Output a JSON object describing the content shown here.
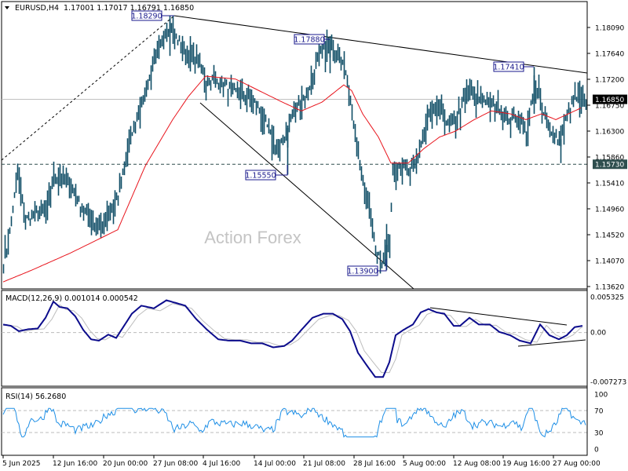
{
  "header": {
    "symbol_timeframe": "EURUSD,H4",
    "ohlc": "1.17001 1.17017 1.16791 1.16850",
    "menu_icon": "triangle-down-icon"
  },
  "watermark": "Action Forex",
  "colors": {
    "candle": "#0f4d66",
    "ma": "#e8141c",
    "macd_main": "#0c0c8c",
    "macd_signal": "#bdbdbd",
    "rsi": "#1e8fe6",
    "tag_border": "#1a1a8c",
    "current_price_bg": "#000000",
    "level_bg": "#2f4f4f"
  },
  "price_axis": {
    "ticks": [
      "1.18090",
      "1.17640",
      "1.17200",
      "1.16750",
      "1.16300",
      "1.15860",
      "1.15410",
      "1.14960",
      "1.14520",
      "1.14070",
      "1.13620"
    ],
    "current_price": "1.16850",
    "level_price": "1.15730"
  },
  "annotations": {
    "high_1": "1.18290",
    "high_2": "1.17880",
    "high_3": "1.17410",
    "low_1": "1.15550",
    "low_2": "1.13900"
  },
  "macd": {
    "label": "MACD(12,26,9) 0.001014 0.000542",
    "ticks": [
      "0.005325",
      "0.00",
      "-0.007273"
    ]
  },
  "rsi": {
    "label": "RSI(14) 56.2680",
    "ticks": [
      "100",
      "70",
      "30",
      "0"
    ]
  },
  "time_axis": {
    "labels": [
      "5 Jun 2025",
      "12 Jun 16:00",
      "20 Jun 00:00",
      "27 Jun 08:00",
      "4 Jul 16:00",
      "14 Jul 00:00",
      "21 Jul 08:00",
      "28 Jul 16:00",
      "5 Aug 00:00",
      "12 Aug 08:00",
      "19 Aug 16:00",
      "27 Aug 00:00"
    ]
  },
  "chart_data": {
    "type": "bar",
    "title": "EURUSD,H4 1.17001 1.17017 1.16791 1.16850",
    "xlabel": "",
    "ylabel": "",
    "ylim": [
      1.1362,
      1.1829
    ],
    "grid": false,
    "x": [
      "5 Jun 2025",
      "12 Jun 16:00",
      "20 Jun 00:00",
      "27 Jun 08:00",
      "4 Jul 16:00",
      "14 Jul 00:00",
      "21 Jul 08:00",
      "28 Jul 16:00",
      "5 Aug 00:00",
      "12 Aug 08:00",
      "19 Aug 16:00",
      "27 Aug 00:00"
    ],
    "series": [
      {
        "name": "EURUSD H4 close (approx. at time labels)",
        "values": [
          1.141,
          1.156,
          1.147,
          1.179,
          1.17,
          1.161,
          1.175,
          1.142,
          1.156,
          1.168,
          1.165,
          1.1685
        ]
      },
      {
        "name": "Moving average (red)",
        "values": [
          1.137,
          1.144,
          1.1495,
          1.166,
          1.172,
          1.168,
          1.167,
          1.16,
          1.1575,
          1.1625,
          1.1655,
          1.1665
        ]
      }
    ],
    "key_levels": {
      "high": 1.1829,
      "lower_high_1": 1.1788,
      "lower_high_2": 1.1741,
      "swing_low_1": 1.1555,
      "swing_low_2": 1.139,
      "support": 1.1573,
      "current": 1.1685
    },
    "indicators": {
      "macd": {
        "params": "12,26,9",
        "main": 0.001014,
        "signal": 0.000542,
        "ylim": [
          -0.007273,
          0.005325
        ]
      },
      "rsi": {
        "period": 14,
        "value": 56.268,
        "levels": [
          30,
          70
        ],
        "ylim": [
          0,
          100
        ]
      }
    },
    "legend": "none"
  }
}
